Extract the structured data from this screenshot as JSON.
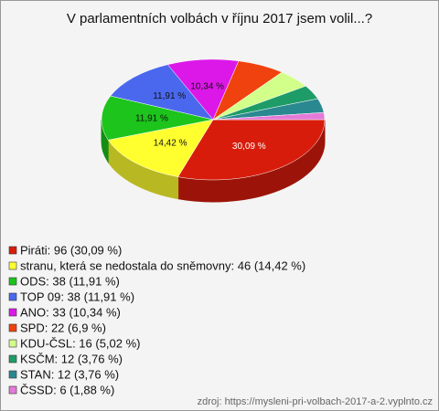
{
  "chart_data": {
    "type": "pie",
    "title": "V parlamentních volbách v říjnu 2017 jsem volil...?",
    "categories": [
      "Piráti",
      "stranu, která se nedostala do sněmovny",
      "ODS",
      "TOP 09",
      "ANO",
      "SPD",
      "KDU-ČSL",
      "KSČM",
      "STAN",
      "ČSSD"
    ],
    "values": [
      30.09,
      14.42,
      11.91,
      11.91,
      10.34,
      6.9,
      5.02,
      3.76,
      3.76,
      1.88
    ],
    "counts": [
      96,
      46,
      38,
      38,
      33,
      22,
      16,
      12,
      12,
      6
    ],
    "value_labels": [
      "30,09 %",
      "14,42 %",
      "11,91 %",
      "11,91 %",
      "10,34 %",
      null,
      null,
      null,
      null,
      null
    ],
    "legend_labels": [
      "Piráti: 96 (30,09 %)",
      "stranu, která se nedostala do sněmovny: 46 (14,42 %)",
      "ODS: 38 (11,91 %)",
      "TOP 09: 38 (11,91 %)",
      "ANO: 33 (10,34 %)",
      "SPD: 22 (6,9 %)",
      "KDU-ČSL: 16 (5,02 %)",
      "KSČM: 12 (3,76 %)",
      "STAN: 12 (3,76 %)",
      "ČSSD: 6 (1,88 %)"
    ],
    "colors": [
      "#d81c0c",
      "#ffff30",
      "#1cc41c",
      "#4a68ee",
      "#dc18e8",
      "#f0420e",
      "#d2ff8a",
      "#1e9c68",
      "#2a8890",
      "#e47ad8"
    ],
    "source": "zdroj: https://mysleni-pri-volbach-2017-a-2.vyplnto.cz"
  }
}
